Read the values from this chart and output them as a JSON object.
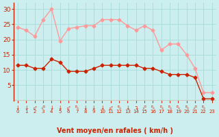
{
  "hours": [
    0,
    1,
    2,
    3,
    4,
    5,
    6,
    7,
    8,
    9,
    10,
    11,
    12,
    13,
    14,
    15,
    16,
    17,
    18,
    19,
    20,
    21,
    22,
    23
  ],
  "wind_avg": [
    11.5,
    11.5,
    10.5,
    10.5,
    13.5,
    12.5,
    9.5,
    9.5,
    9.5,
    10.5,
    11.5,
    11.5,
    11.5,
    11.5,
    11.5,
    10.5,
    10.5,
    9.5,
    8.5,
    8.5,
    8.5,
    7.5,
    0.5,
    0.5
  ],
  "wind_gust": [
    24.0,
    23.0,
    21.0,
    26.5,
    30.0,
    19.5,
    23.5,
    24.0,
    24.5,
    24.5,
    26.5,
    26.5,
    26.5,
    24.5,
    23.0,
    24.5,
    23.0,
    16.5,
    18.5,
    18.5,
    15.0,
    10.5,
    2.5,
    2.5
  ],
  "avg_color": "#cc2200",
  "gust_color": "#ff9999",
  "bg_color": "#cceeee",
  "grid_color": "#aadddd",
  "xlabel": "Vent moyen/en rafales ( km/h )",
  "xlabel_color": "#cc2200",
  "tick_color": "#cc2200",
  "ylim": [
    0,
    32
  ],
  "yticks": [
    5,
    10,
    15,
    20,
    25,
    30
  ],
  "wind_direction_symbols": [
    "↓",
    "↓",
    "⬃",
    "⬀",
    "↓",
    "↓",
    "⬃",
    "⬁",
    "↓",
    "↓",
    "↓",
    "⬃",
    "⬁",
    "↓",
    "↴",
    "⬀",
    "⬁",
    "⬁",
    "⬁",
    "⬁",
    "⬁",
    "⬀",
    "⬁",
    " "
  ]
}
